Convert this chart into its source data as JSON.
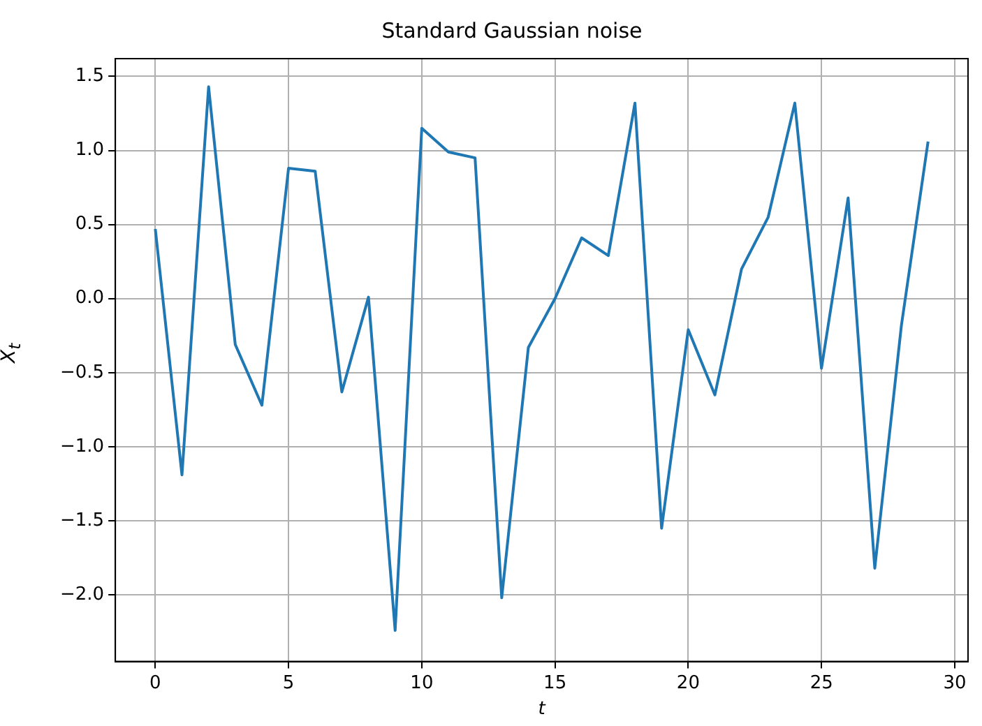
{
  "chart_data": {
    "type": "line",
    "title": "Standard Gaussian noise",
    "xlabel": "t",
    "ylabel": "X$_{t}$",
    "x": [
      0,
      1,
      2,
      3,
      4,
      5,
      6,
      7,
      8,
      9,
      10,
      11,
      12,
      13,
      14,
      15,
      16,
      17,
      18,
      19,
      20,
      21,
      22,
      23,
      24,
      25,
      26,
      27,
      28,
      29
    ],
    "series": [
      {
        "color": "#1f77b4",
        "values": [
          0.47,
          -1.19,
          1.43,
          -0.31,
          -0.72,
          0.88,
          0.86,
          -0.63,
          0.01,
          -2.24,
          1.15,
          0.99,
          0.95,
          -2.02,
          -0.33,
          0.0,
          0.41,
          0.29,
          1.32,
          -1.55,
          -0.21,
          -0.65,
          0.2,
          0.55,
          1.32,
          -0.47,
          0.68,
          -1.82,
          -0.18,
          1.06
        ]
      }
    ],
    "xlim": [
      -1.5,
      30.5
    ],
    "xticks": [
      0,
      5,
      10,
      15,
      20,
      25,
      30
    ],
    "ylim": [
      -2.45,
      1.62
    ],
    "yticks": [
      {
        "value": -2,
        "label": "−2.0"
      },
      {
        "value": -1.5,
        "label": "−1.5"
      },
      {
        "value": -1,
        "label": "−1.0"
      },
      {
        "value": -0.5,
        "label": "−0.5"
      },
      {
        "value": 0,
        "label": "0.0"
      },
      {
        "value": 0.5,
        "label": "0.5"
      },
      {
        "value": 1,
        "label": "1.0"
      },
      1.5
    ],
    "grid": true,
    "marker": "none",
    "line_style": "solid",
    "legend": false
  }
}
